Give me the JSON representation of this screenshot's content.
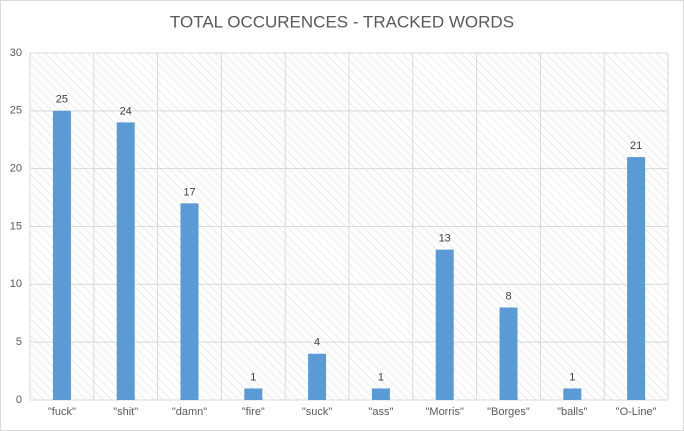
{
  "chart_data": {
    "type": "bar",
    "title": "TOTAL OCCURENCES - TRACKED WORDS",
    "categories": [
      "\"fuck\"",
      "\"shit\"",
      "\"damn\"",
      "\"fire\"",
      "\"suck\"",
      "\"ass\"",
      "\"Morris\"",
      "\"Borges\"",
      "\"balls\"",
      "\"O-Line\""
    ],
    "values": [
      25,
      24,
      17,
      1,
      4,
      1,
      13,
      8,
      1,
      21
    ],
    "color": "#5b9bd5",
    "ylim": [
      0,
      30
    ],
    "yticks": [
      0,
      5,
      10,
      15,
      20,
      25,
      30
    ],
    "grid": true
  }
}
